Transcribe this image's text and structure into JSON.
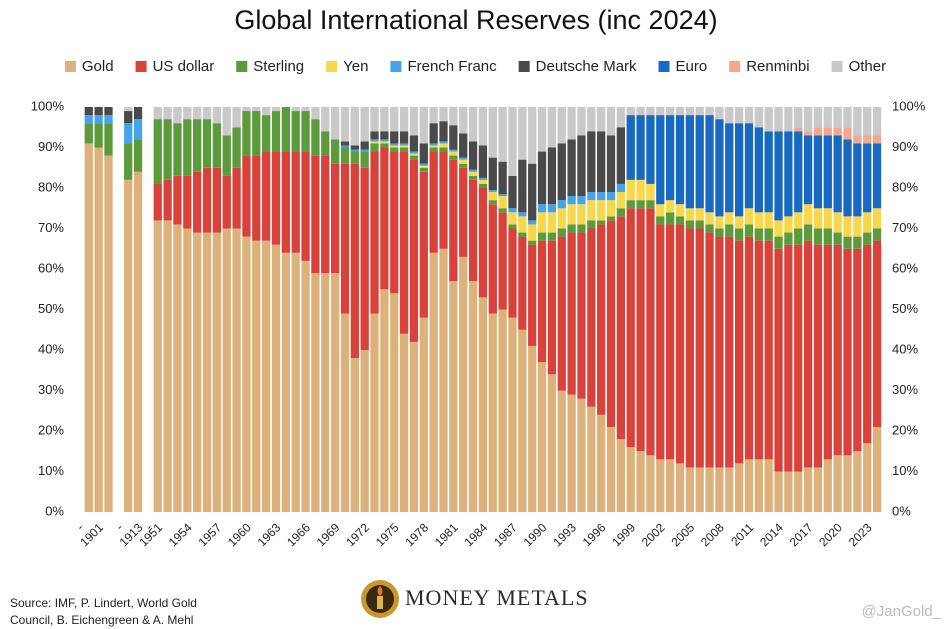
{
  "chart_data": {
    "type": "stacked_bar",
    "title": "Global International Reserves (inc 2024)",
    "categories": [
      "-",
      null,
      "1901",
      null,
      "-",
      null,
      "1913",
      "-",
      "1951",
      null,
      null,
      "1954",
      null,
      null,
      "1957",
      null,
      null,
      "1960",
      null,
      null,
      "1963",
      null,
      null,
      "1966",
      null,
      null,
      "1969",
      null,
      null,
      "1972",
      null,
      null,
      "1975",
      null,
      null,
      "1978",
      null,
      null,
      "1981",
      null,
      null,
      "1984",
      null,
      null,
      "1987",
      null,
      null,
      "1990",
      null,
      null,
      "1993",
      null,
      null,
      "1996",
      null,
      null,
      "1999",
      null,
      null,
      "2002",
      null,
      null,
      "2005",
      null,
      null,
      "2008",
      null,
      null,
      "2011",
      null,
      null,
      "2014",
      null,
      null,
      "2017",
      null,
      null,
      "2020",
      null,
      null,
      "2023",
      null
    ],
    "series": [
      {
        "name": "Gold",
        "color": "#dcb17b",
        "values": [
          null,
          91,
          90,
          88,
          null,
          82,
          84,
          null,
          72,
          72,
          71,
          70,
          69,
          69,
          69,
          70,
          70,
          68,
          67,
          67,
          66,
          64,
          64,
          62,
          59,
          59,
          59,
          49,
          38,
          40,
          49,
          55,
          54,
          44,
          42,
          48,
          64,
          65,
          57,
          63,
          57,
          53,
          49,
          50,
          48,
          45,
          41,
          37,
          34,
          30,
          29,
          28,
          26,
          24,
          21,
          18,
          16,
          15,
          14,
          13,
          13,
          12,
          11,
          11,
          11,
          11,
          11,
          12,
          13,
          13,
          13,
          10,
          10,
          10,
          11,
          11,
          13,
          14,
          14,
          15,
          17,
          21
        ]
      },
      {
        "name": "US dollar",
        "color": "#d8423a",
        "values": [
          null,
          0,
          0,
          0,
          null,
          0,
          0,
          null,
          9,
          10,
          12,
          13,
          15,
          16,
          16,
          13,
          15,
          20,
          21,
          22,
          23,
          25,
          25,
          27,
          29,
          29,
          27,
          37,
          48,
          45,
          40,
          35,
          35,
          45,
          45,
          36,
          25,
          24,
          30,
          22,
          25,
          27,
          27,
          24,
          22,
          23,
          25,
          30,
          33,
          38,
          40,
          41,
          44,
          47,
          51,
          55,
          59,
          60,
          61,
          58,
          58,
          59,
          59,
          59,
          58,
          57,
          57,
          55,
          55,
          54,
          54,
          55,
          56,
          56,
          56,
          55,
          53,
          52,
          51,
          50,
          49,
          46
        ]
      },
      {
        "name": "Sterling",
        "color": "#5b9b3b",
        "values": [
          null,
          5,
          6,
          8,
          null,
          9,
          8,
          null,
          16,
          15,
          13,
          14,
          13,
          12,
          11,
          10,
          10,
          11,
          11,
          9,
          10,
          11,
          10,
          10,
          9,
          6,
          6,
          4,
          3,
          4,
          2,
          1,
          1,
          1,
          1,
          1,
          1,
          1,
          1,
          1,
          1,
          1,
          1,
          1,
          1,
          1,
          1,
          2,
          2,
          2,
          2,
          2,
          2,
          1,
          1,
          2,
          2,
          2,
          2,
          2,
          3,
          2,
          2,
          2,
          2,
          2,
          3,
          3,
          3,
          3,
          3,
          3,
          3,
          4,
          4,
          4,
          4,
          3,
          3,
          3,
          3,
          3
        ]
      },
      {
        "name": "Yen",
        "color": "#f8d84b",
        "values": [
          null,
          0,
          0,
          0,
          null,
          0,
          0,
          null,
          0,
          0,
          0,
          0,
          0,
          0,
          0,
          0,
          0,
          0,
          0,
          0,
          0,
          0,
          0,
          0,
          0,
          0,
          0,
          0,
          0,
          0,
          0.5,
          0.5,
          0.5,
          0.5,
          0.5,
          0.5,
          0.5,
          1,
          1,
          1,
          1,
          1,
          2,
          3,
          3,
          4,
          4,
          5,
          5,
          5,
          5,
          5,
          5,
          5,
          4,
          4,
          5,
          5,
          4,
          3,
          3,
          3,
          3,
          3,
          3,
          3,
          3,
          3,
          4,
          4,
          4,
          4,
          4,
          4,
          5,
          5,
          5,
          5,
          5,
          5,
          5,
          5
        ]
      },
      {
        "name": "French Franc",
        "color": "#45a3ea",
        "values": [
          null,
          2,
          2,
          2,
          null,
          5,
          5,
          null,
          0,
          0,
          0,
          0,
          0,
          0,
          0,
          0,
          0,
          0,
          0,
          0,
          0,
          0,
          0,
          0,
          0,
          0,
          0,
          0.5,
          0.5,
          0.5,
          0.5,
          0.5,
          0.5,
          0.5,
          0.5,
          0.5,
          0.5,
          0.5,
          0.5,
          0.5,
          0.5,
          0.5,
          0.5,
          0.5,
          1,
          1,
          1,
          2,
          2,
          2,
          2,
          2,
          2,
          2,
          2,
          2,
          0,
          0,
          0,
          0,
          0,
          0,
          0,
          0,
          0,
          0,
          0,
          0,
          0,
          0,
          0,
          0,
          0,
          0,
          0,
          0,
          0,
          0,
          0,
          0,
          0,
          0
        ]
      },
      {
        "name": "Deutsche Mark",
        "color": "#4a4a4a",
        "values": [
          null,
          2,
          2,
          2,
          null,
          3,
          3,
          null,
          0,
          0,
          0,
          0,
          0,
          0,
          0,
          0,
          0,
          0,
          0,
          0,
          0,
          0,
          0,
          0,
          0,
          0,
          0,
          1,
          1,
          2,
          2,
          2,
          3,
          3,
          4,
          5,
          5,
          5,
          6,
          6,
          7,
          8,
          8,
          8,
          8,
          13,
          14,
          13,
          14,
          14,
          14,
          15,
          15,
          15,
          14,
          14,
          0,
          0,
          0,
          0,
          0,
          0,
          0,
          0,
          0,
          0,
          0,
          0,
          0,
          0,
          0,
          0,
          0,
          0,
          0,
          0,
          0,
          0,
          0,
          0,
          0,
          0
        ]
      },
      {
        "name": "Euro",
        "color": "#1769c1",
        "values": [
          null,
          0,
          0,
          0,
          null,
          0,
          0,
          null,
          0,
          0,
          0,
          0,
          0,
          0,
          0,
          0,
          0,
          0,
          0,
          0,
          0,
          0,
          0,
          0,
          0,
          0,
          0,
          0,
          0,
          0,
          0,
          0,
          0,
          0,
          0,
          0,
          0,
          0,
          0,
          0,
          0,
          0,
          0,
          0,
          0,
          0,
          0,
          0,
          0,
          0,
          0,
          0,
          0,
          0,
          0,
          0,
          16,
          16,
          17,
          22,
          21,
          22,
          23,
          23,
          24,
          24,
          22,
          23,
          21,
          21,
          20,
          22,
          21,
          20,
          17,
          18,
          18,
          19,
          19,
          18,
          17,
          16
        ]
      },
      {
        "name": "Renminbi",
        "color": "#f1a88e",
        "values": [
          null,
          0,
          0,
          0,
          null,
          0,
          0,
          null,
          0,
          0,
          0,
          0,
          0,
          0,
          0,
          0,
          0,
          0,
          0,
          0,
          0,
          0,
          0,
          0,
          0,
          0,
          0,
          0,
          0,
          0,
          0,
          0,
          0,
          0,
          0,
          0,
          0,
          0,
          0,
          0,
          0,
          0,
          0,
          0,
          0,
          0,
          0,
          0,
          0,
          0,
          0,
          0,
          0,
          0,
          0,
          0,
          0,
          0,
          0,
          0,
          0,
          0,
          0,
          0,
          0,
          0,
          0,
          0,
          0,
          0,
          0,
          0,
          0,
          1,
          1,
          2,
          2,
          2,
          3,
          2,
          2,
          2
        ]
      },
      {
        "name": "Other",
        "color": "#c9c9c9",
        "values": [
          null,
          0,
          0,
          0,
          null,
          1,
          0,
          null,
          3,
          3,
          4,
          3,
          3,
          3,
          4,
          7,
          5,
          1,
          1,
          2,
          1,
          0,
          1,
          1,
          3,
          6,
          8,
          8.5,
          9.5,
          8.5,
          6,
          6,
          6,
          6,
          7,
          9,
          4,
          3.5,
          4.5,
          6.5,
          8.5,
          9.5,
          12.5,
          13.5,
          17,
          13,
          14,
          11,
          10,
          9,
          8,
          7,
          6,
          6,
          7,
          5,
          2,
          2,
          2,
          2,
          2,
          2,
          2,
          2,
          2,
          3,
          4,
          4,
          4,
          5,
          6,
          6,
          6,
          5,
          6,
          5,
          5,
          5,
          5,
          7,
          7,
          7
        ]
      }
    ],
    "ylim": [
      0,
      100
    ],
    "yticks": [
      {
        "value": 0,
        "label": "0%"
      },
      {
        "value": 10,
        "label": "10%"
      },
      {
        "value": 20,
        "label": "20%"
      },
      {
        "value": 30,
        "label": "30%"
      },
      {
        "value": 40,
        "label": "40%"
      },
      {
        "value": 50,
        "label": "50%"
      },
      {
        "value": 60,
        "label": "60%"
      },
      {
        "value": 70,
        "label": "70%"
      },
      {
        "value": 80,
        "label": "80%"
      },
      {
        "value": 90,
        "label": "90%"
      },
      {
        "value": 100,
        "label": "100%"
      }
    ],
    "y2lim": [
      0,
      100
    ],
    "y2ticks": [
      {
        "value": 0,
        "label": "0%"
      },
      {
        "value": 10,
        "label": "10%"
      },
      {
        "value": 20,
        "label": "20%"
      },
      {
        "value": 30,
        "label": "30%"
      },
      {
        "value": 40,
        "label": "40%"
      },
      {
        "value": 50,
        "label": "50%"
      },
      {
        "value": 60,
        "label": "60%"
      },
      {
        "value": 70,
        "label": "70%"
      },
      {
        "value": 80,
        "label": "80%"
      },
      {
        "value": 90,
        "label": "90%"
      },
      {
        "value": 100,
        "label": "100%"
      }
    ],
    "grid": false,
    "legend": "top",
    "source": [
      "Source: IMF, P. Lindert, World Gold",
      "Council, B. Eichengreen & A. Mehl"
    ],
    "logo": "MONEY METALS",
    "watermark": "@JanGold_"
  }
}
